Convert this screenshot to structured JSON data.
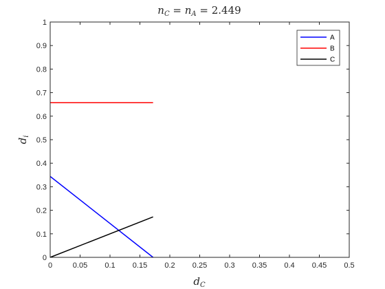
{
  "chart_data": {
    "type": "line",
    "title": "n_C = n_A = 2.449",
    "title_parts": {
      "n1": "n",
      "s1": "C",
      "eq1": " = ",
      "n2": "n",
      "s2": "A",
      "rest": " = 2.449"
    },
    "xlabel": "d_C",
    "xlabel_parts": {
      "base": "d",
      "sub": "C"
    },
    "ylabel": "d_i",
    "ylabel_parts": {
      "base": "d",
      "sub": "i"
    },
    "xlim": [
      0,
      0.5
    ],
    "ylim": [
      0,
      1
    ],
    "xticks": [
      0,
      0.05,
      0.1,
      0.15,
      0.2,
      0.25,
      0.3,
      0.35,
      0.4,
      0.45,
      0.5
    ],
    "xtick_labels": [
      "0",
      "0.05",
      "0.1",
      "0.15",
      "0.2",
      "0.25",
      "0.3",
      "0.35",
      "0.4",
      "0.45",
      "0.5"
    ],
    "yticks": [
      0,
      0.1,
      0.2,
      0.3,
      0.4,
      0.5,
      0.6,
      0.7,
      0.8,
      0.9,
      1
    ],
    "ytick_labels": [
      "0",
      "0.1",
      "0.2",
      "0.3",
      "0.4",
      "0.5",
      "0.6",
      "0.7",
      "0.8",
      "0.9",
      "1"
    ],
    "grid": false,
    "legend_position": "top-right",
    "series": [
      {
        "name": "A",
        "color": "#0000ff",
        "x": [
          0,
          0.172
        ],
        "y": [
          0.344,
          0
        ]
      },
      {
        "name": "B",
        "color": "#ff0000",
        "x": [
          0,
          0.172
        ],
        "y": [
          0.657,
          0.657
        ]
      },
      {
        "name": "C",
        "color": "#000000",
        "x": [
          0,
          0.172
        ],
        "y": [
          0,
          0.172
        ]
      }
    ]
  }
}
